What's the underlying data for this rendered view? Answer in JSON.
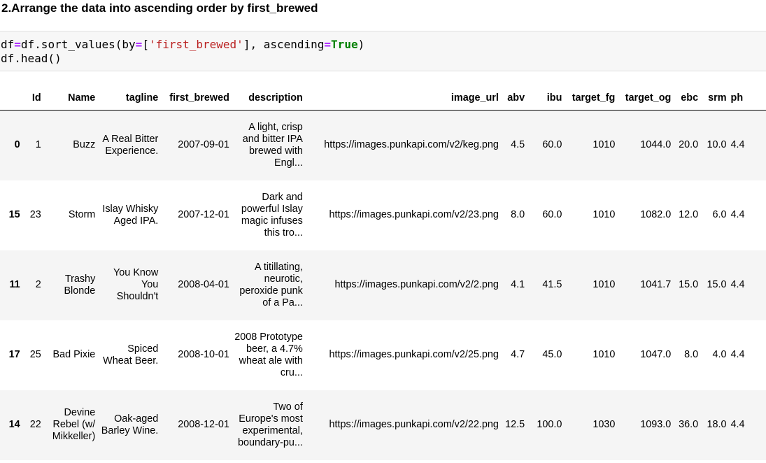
{
  "heading": "2.Arrange the data into ascending order by first_brewed",
  "code": {
    "line1": {
      "a": "df",
      "eq": "=",
      "b": "df.sort_values(by",
      "eq2": "=",
      "c": "[",
      "str": "'first_brewed'",
      "d": "], ascending",
      "eq3": "=",
      "kw": "True",
      "e": ")"
    },
    "line2": "df.head()"
  },
  "table": {
    "columns": [
      "",
      "Id",
      "Name",
      "tagline",
      "first_brewed",
      "description",
      "image_url",
      "abv",
      "ibu",
      "target_fg",
      "target_og",
      "ebc",
      "srm",
      "ph"
    ],
    "rows": [
      {
        "index": "0",
        "cells": [
          "1",
          "Buzz",
          "A Real Bitter Experience.",
          "2007-09-01",
          "A light, crisp and bitter IPA brewed with Engl...",
          "https://images.punkapi.com/v2/keg.png",
          "4.5",
          "60.0",
          "1010",
          "1044.0",
          "20.0",
          "10.0",
          "4.4"
        ]
      },
      {
        "index": "15",
        "cells": [
          "23",
          "Storm",
          "Islay Whisky Aged IPA.",
          "2007-12-01",
          "Dark and powerful Islay magic infuses this tro...",
          "https://images.punkapi.com/v2/23.png",
          "8.0",
          "60.0",
          "1010",
          "1082.0",
          "12.0",
          "6.0",
          "4.4"
        ]
      },
      {
        "index": "11",
        "cells": [
          "2",
          "Trashy Blonde",
          "You Know You Shouldn't",
          "2008-04-01",
          "A titillating, neurotic, peroxide punk of a Pa...",
          "https://images.punkapi.com/v2/2.png",
          "4.1",
          "41.5",
          "1010",
          "1041.7",
          "15.0",
          "15.0",
          "4.4"
        ]
      },
      {
        "index": "17",
        "cells": [
          "25",
          "Bad Pixie",
          "Spiced Wheat Beer.",
          "2008-10-01",
          "2008 Prototype beer, a 4.7% wheat ale with cru...",
          "https://images.punkapi.com/v2/25.png",
          "4.7",
          "45.0",
          "1010",
          "1047.0",
          "8.0",
          "4.0",
          "4.4"
        ]
      },
      {
        "index": "14",
        "cells": [
          "22",
          "Devine Rebel (w/ Mikkeller)",
          "Oak-aged Barley Wine.",
          "2008-12-01",
          "Two of Europe's most experimental, boundary-pu...",
          "https://images.punkapi.com/v2/22.png",
          "12.5",
          "100.0",
          "1030",
          "1093.0",
          "36.0",
          "18.0",
          "4.4"
        ]
      }
    ]
  }
}
